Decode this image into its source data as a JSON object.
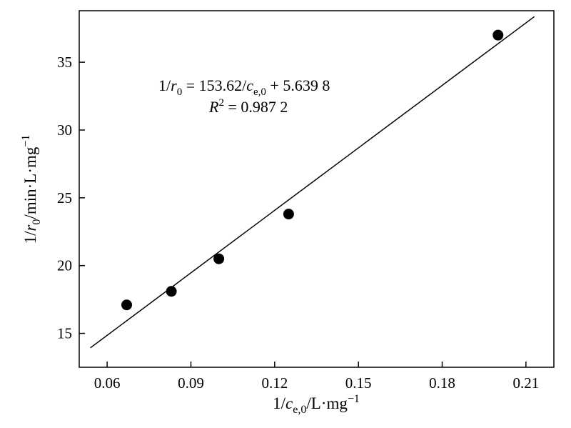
{
  "chart_data": {
    "type": "scatter",
    "points": [
      {
        "x": 0.067,
        "y": 17.1
      },
      {
        "x": 0.083,
        "y": 18.1
      },
      {
        "x": 0.1,
        "y": 20.5
      },
      {
        "x": 0.125,
        "y": 23.8
      },
      {
        "x": 0.2,
        "y": 37.0
      }
    ],
    "fit_line": {
      "slope": 153.62,
      "intercept": 5.6398,
      "x_range": [
        0.054,
        0.213
      ]
    },
    "xlim": [
      0.05,
      0.22
    ],
    "ylim": [
      12.5,
      38.8
    ],
    "x_ticks": [
      0.06,
      0.09,
      0.12,
      0.15,
      0.18,
      0.21
    ],
    "x_tick_labels": [
      "0.06",
      "0.09",
      "0.12",
      "0.15",
      "0.18",
      "0.21"
    ],
    "y_ticks": [
      15,
      20,
      25,
      30,
      35
    ],
    "y_tick_labels": [
      "15",
      "20",
      "25",
      "30",
      "35"
    ],
    "xlabel": {
      "pre": "1/",
      "var": "c",
      "sub": "e,0",
      "post": "/L·mg",
      "sup": "−1"
    },
    "ylabel": {
      "pre": "1/",
      "var": "r",
      "sub": "0",
      "post": "/min·L·mg",
      "sup": "−1"
    },
    "annotation": {
      "equation": {
        "pre": "1/",
        "var1": "r",
        "sub1": "0",
        "mid": " = 153.62/",
        "var2": "c",
        "sub2": "e,0",
        "post": " + 5.639 8"
      },
      "r2": {
        "var": "R",
        "sup": "2",
        "post": " = 0.987 2"
      }
    },
    "grid": false,
    "legend": "none"
  }
}
